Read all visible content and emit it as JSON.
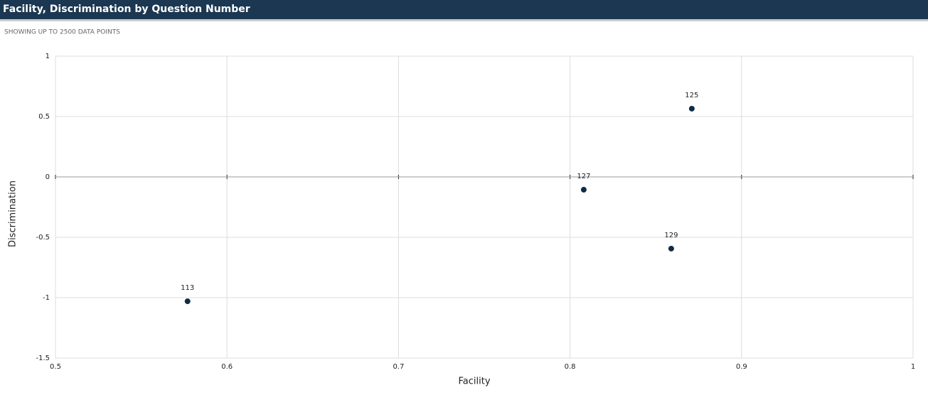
{
  "chart_data": {
    "type": "scatter",
    "title": "Facility, Discrimination by Question Number",
    "subtitle": "SHOWING UP TO 2500 DATA POINTS",
    "xlabel": "Facility",
    "ylabel": "Discrimination",
    "x": [
      0.577,
      0.808,
      0.859,
      0.871
    ],
    "values": [
      -1.03,
      -0.106,
      -0.594,
      0.565
    ],
    "labels": [
      "113",
      "127",
      "129",
      "125"
    ],
    "color": "#0f2b46",
    "xlim": [
      0.5,
      1
    ],
    "xticks": [
      0.5,
      0.6,
      0.7,
      0.8,
      0.9,
      1
    ],
    "ylim": [
      -1.5,
      1
    ],
    "yticks": [
      1,
      0.5,
      0,
      -0.5,
      -1,
      -1.5
    ],
    "grid": true
  }
}
